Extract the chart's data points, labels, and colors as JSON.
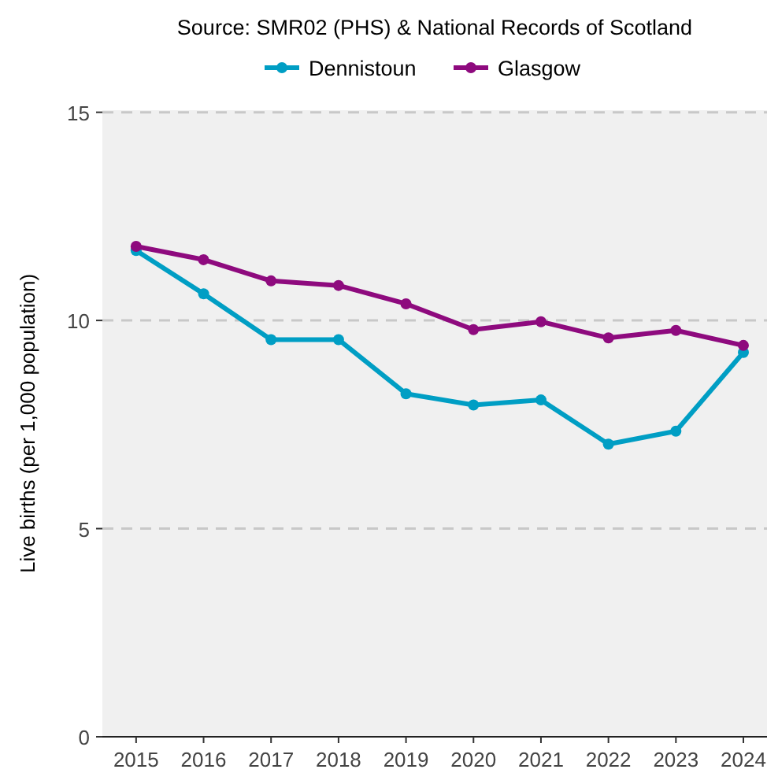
{
  "chart_data": {
    "type": "line",
    "title": "Source: SMR02 (PHS) & National Records of Scotland",
    "ylabel": "Live births (per 1,000 population)",
    "x": [
      2015,
      2016,
      2017,
      2018,
      2019,
      2020,
      2021,
      2022,
      2023,
      2024
    ],
    "series": [
      {
        "name": "Dennistoun",
        "color": "#009ec4",
        "values": [
          11.68,
          10.64,
          9.54,
          9.54,
          8.24,
          7.97,
          8.09,
          7.03,
          7.34,
          9.23
        ]
      },
      {
        "name": "Glasgow",
        "color": "#8e0a7e",
        "values": [
          11.78,
          11.46,
          10.95,
          10.84,
          10.4,
          9.78,
          9.97,
          9.58,
          9.76,
          9.4
        ]
      }
    ],
    "xlim": [
      2014.5,
      2024.35
    ],
    "xticks": [
      2015,
      2016,
      2017,
      2018,
      2019,
      2020,
      2021,
      2022,
      2023,
      2024
    ],
    "ylim": [
      0,
      15.05
    ],
    "yticks": [
      0,
      5,
      10,
      15
    ],
    "grid": "y",
    "legend": "top",
    "marker": "circle",
    "line_style": "solid"
  }
}
